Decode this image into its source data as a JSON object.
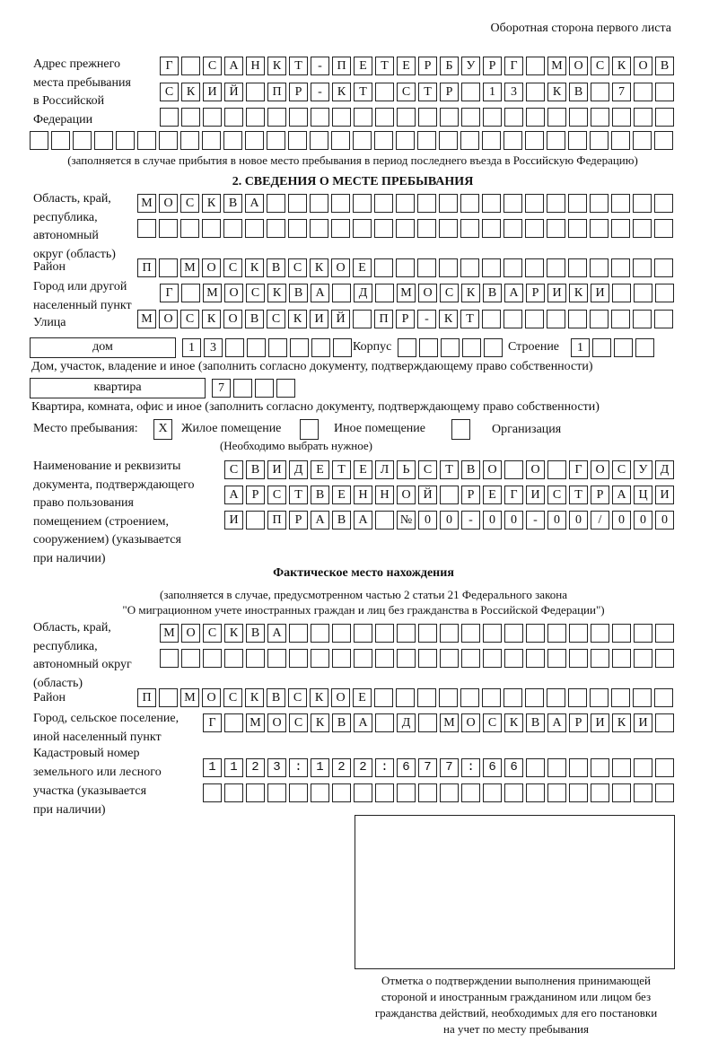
{
  "header": "Оборотная сторона первого листа",
  "previous_address": {
    "label": [
      "Адрес прежнего",
      "места пребывания",
      "в Российской",
      "Федерации"
    ],
    "rows": [
      "Г САНКТ-ПЕТЕРБУРГ МОСКОВ",
      "СКИЙ ПР-КТ СТР 13 КВ 7  ",
      "                        ",
      "                              "
    ],
    "note": "(заполняется в случае прибытия в новое место пребывания в период последнего въезда в Российскую Федерацию)"
  },
  "section2": {
    "title": "2. СВЕДЕНИЯ О МЕСТЕ ПРЕБЫВАНИЯ",
    "region_label": [
      "Область, край,",
      "республика,",
      "автономный",
      "округ (область)"
    ],
    "region_rows": [
      "МОСКВА                   ",
      "                         "
    ],
    "district_label": "Район",
    "district_row": "П МОСКВСКОЕ              ",
    "city_label": [
      "Город или другой",
      "населенный пункт"
    ],
    "city_row": "Г МОСКВА Д МОСКВАРИКИ   ",
    "street_label": "Улица",
    "street_row": "МОСКОВСКИЙ ПР-КТ         ",
    "house_type": "дом",
    "house_cells": "13      ",
    "korpus_label": "Корпус",
    "korpus_cells": "     ",
    "building_label": "Строение",
    "building_cells": "1   ",
    "house_note": "Дом, участок, владение и иное (заполнить согласно документу, подтверждающему право собственности)",
    "flat_type": "квартира",
    "flat_cells": "7   ",
    "flat_note": "Квартира, комната, офис и иное (заполнить согласно документу, подтверждающему право собственности)",
    "stay_label": "Место пребывания:",
    "stay_options": [
      {
        "label": "Жилое помещение",
        "mark": "X"
      },
      {
        "label": "Иное помещение",
        "mark": ""
      },
      {
        "label": "Организация",
        "mark": ""
      }
    ],
    "stay_note": "(Необходимо выбрать нужное)",
    "doc_label": [
      "Наименование и реквизиты",
      "документа, подтверждающего",
      "право пользования",
      "помещением (строением,",
      "сооружением) (указывается",
      "при наличии)"
    ],
    "doc_rows": [
      "СВИДЕТЕЛЬСТВО О ГОСУД",
      "АРСТВЕННОЙ РЕГИСТРАЦИ",
      "И ПРАВА №00-00-00/000"
    ]
  },
  "actual": {
    "title": "Фактическое место нахождения",
    "note": [
      "(заполняется в случае, предусмотренном частью 2 статьи 21 Федерального закона",
      "\"О миграционном учете иностранных граждан и лиц без гражданства в Российской Федерации\")"
    ],
    "region_label": [
      "Область, край,",
      "республика,",
      "автономный округ",
      "(область)"
    ],
    "region_rows": [
      "МОСКВА                  ",
      "                        "
    ],
    "district_label": "Район",
    "district_row": "П МОСКВСКОЕ              ",
    "city_label": [
      "Город, сельское поселение,",
      "иной населенный пункт"
    ],
    "city_row": "Г МОСКВА Д МОСКВАРИКИ ",
    "cadastral_label": [
      "Кадастровый номер",
      "земельного или лесного",
      "участка (указывается",
      "при наличии)"
    ],
    "cadastral_rows": [
      "1123:122:677:66       ",
      "                      "
    ]
  },
  "stamp_caption": [
    "Отметка о подтверждении выполнения принимающей",
    "стороной и иностранным гражданином или лицом без",
    "гражданства действий, необходимых для его постановки",
    "на учет по месту пребывания"
  ]
}
